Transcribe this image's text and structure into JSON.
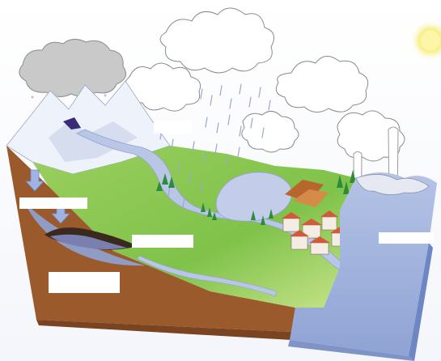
{
  "colors": {
    "soil": "#9a5a2c",
    "soil_dark": "#7a4420",
    "grass": "#7fc24a",
    "grass_light": "#b6dc78",
    "water": "#9fb2dc",
    "water_dark": "#7f93c6",
    "snow": "#eef2fb",
    "cloud_dark": "#c9c9c9",
    "sun": "#f6f08a",
    "roof": "#d4583a",
    "trees": "#2f8a3a"
  },
  "icons": {
    "sun": "sun-icon",
    "rain_cloud": "rain-cloud-icon",
    "infiltration_arrows": "down-arrow-icon"
  },
  "labels": [
    "",
    "",
    "",
    "",
    "",
    ""
  ]
}
